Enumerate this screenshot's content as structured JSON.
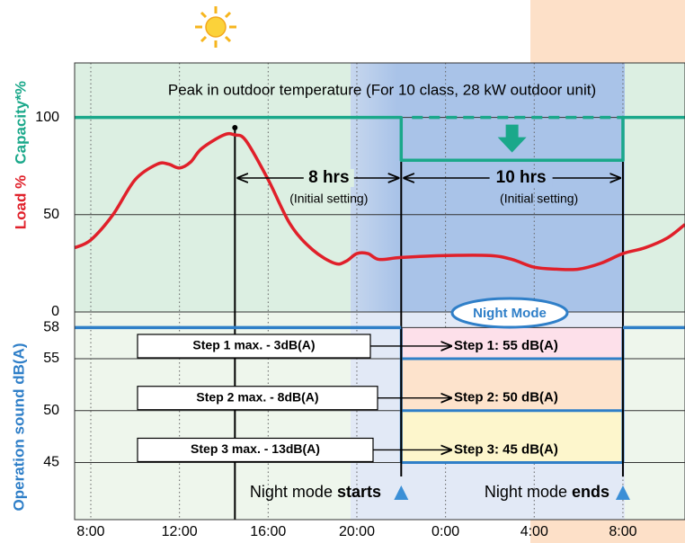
{
  "chart_data": {
    "type": "line",
    "annotation": "Peak in outdoor  temperature (For 10 class, 28 kW outdoor unit)",
    "y_label": "Load  %",
    "y_label_capacity": "Capacity*%",
    "y2_label": "Operation sound dB(A)",
    "xlim": [
      -0.73,
      26.8
    ],
    "xticks": [
      {
        "value": 0,
        "label": "8:00"
      },
      {
        "value": 4,
        "label": "12:00"
      },
      {
        "value": 8,
        "label": "16:00"
      },
      {
        "value": 12,
        "label": "20:00"
      },
      {
        "value": 16,
        "label": "0:00"
      },
      {
        "value": 20,
        "label": "4:00"
      },
      {
        "value": 24,
        "label": "8:00"
      }
    ],
    "ylim": [
      0,
      128
    ],
    "yticks": [
      0,
      50,
      100
    ],
    "y2lim": [
      39.5,
      59.5
    ],
    "y2ticks": [
      45,
      50,
      55,
      58
    ],
    "series": [
      {
        "color": "#e0202a",
        "x": [
          -0.73,
          0,
          1,
          2,
          3,
          3.5,
          4,
          4.5,
          5,
          6,
          6.5,
          7,
          8,
          9,
          10,
          11,
          11.5,
          12,
          12.5,
          13,
          14,
          16,
          18,
          19,
          20,
          21,
          22,
          23,
          24,
          25,
          26,
          26.8
        ],
        "values": [
          33,
          37,
          50,
          68,
          76,
          76,
          74,
          77,
          84,
          91,
          91,
          88,
          68,
          45,
          32,
          25,
          26,
          30,
          30,
          27,
          28,
          29,
          29,
          27,
          23,
          22,
          22,
          25,
          30,
          33,
          38,
          45
        ]
      },
      {
        "color": "#1aa88a",
        "x": [
          -0.73,
          14,
          14,
          24,
          24,
          26.8
        ],
        "values": [
          100,
          100,
          78,
          78,
          100,
          100
        ]
      },
      {
        "axis": "y2",
        "color": "#2f7fc8",
        "x": [
          -0.73,
          14,
          19,
          24,
          26.8
        ],
        "values": [
          58,
          58,
          null,
          58,
          58
        ]
      }
    ],
    "peak_x": 6.5,
    "night_mode": {
      "label": "Night Mode",
      "start": 14,
      "end": 24,
      "start_text": [
        "Night mode ",
        "starts"
      ],
      "end_text": [
        "Night mode ",
        "ends"
      ]
    },
    "spans": [
      {
        "label": "8 hrs",
        "note": "(Initial setting)",
        "from": 6.5,
        "to": 14
      },
      {
        "label": "10 hrs",
        "note": "(Initial setting)",
        "from": 14,
        "to": 24
      }
    ],
    "steps": [
      {
        "max_label": "Step 1 max. - 3dB(A)",
        "label": "Step 1: 55 dB(A)",
        "level": 55,
        "color": "#fde0ea"
      },
      {
        "max_label": "Step 2 max. - 8dB(A)",
        "label": "Step 2: 50 dB(A)",
        "level": 50,
        "color": "#fde3cc"
      },
      {
        "max_label": "Step 3 max. - 13dB(A)",
        "label": "Step 3: 45 dB(A)",
        "level": 45,
        "color": "#fdf6cc"
      }
    ]
  }
}
